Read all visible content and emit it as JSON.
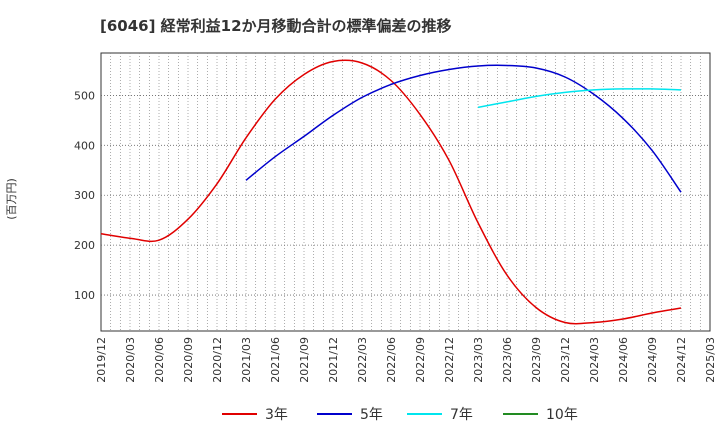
{
  "chart_data": {
    "type": "line",
    "title": "[6046]  経常利益12か月移動合計の標準偏差の推移",
    "ylabel": "(百万円)",
    "xlabel": "",
    "ylim": [
      28,
      585
    ],
    "yticks": [
      100,
      200,
      300,
      400,
      500
    ],
    "xlim": [
      "2019-12",
      "2025-03"
    ],
    "xticks": [
      "2019/12",
      "2020/03",
      "2020/06",
      "2020/09",
      "2020/12",
      "2021/03",
      "2021/06",
      "2021/09",
      "2021/12",
      "2022/03",
      "2022/06",
      "2022/09",
      "2022/12",
      "2023/03",
      "2023/06",
      "2023/09",
      "2023/12",
      "2024/03",
      "2024/06",
      "2024/09",
      "2024/12",
      "2025/03"
    ],
    "grid": true,
    "legend_position": "bottom",
    "series": [
      {
        "name": "3年",
        "color": "#e00000",
        "points": [
          [
            "2019-12",
            223
          ],
          [
            "2020-03",
            214
          ],
          [
            "2020-06",
            210
          ],
          [
            "2020-09",
            252
          ],
          [
            "2020-12",
            323
          ],
          [
            "2021-03",
            415
          ],
          [
            "2021-06",
            492
          ],
          [
            "2021-09",
            542
          ],
          [
            "2021-12",
            568
          ],
          [
            "2022-03",
            565
          ],
          [
            "2022-06",
            530
          ],
          [
            "2022-09",
            462
          ],
          [
            "2022-12",
            370
          ],
          [
            "2023-03",
            245
          ],
          [
            "2023-06",
            140
          ],
          [
            "2023-09",
            75
          ],
          [
            "2023-12",
            45
          ],
          [
            "2024-03",
            45
          ],
          [
            "2024-06",
            52
          ],
          [
            "2024-09",
            64
          ],
          [
            "2024-12",
            74
          ]
        ]
      },
      {
        "name": "5年",
        "color": "#0000cc",
        "points": [
          [
            "2021-03",
            330
          ],
          [
            "2021-06",
            377
          ],
          [
            "2021-09",
            418
          ],
          [
            "2021-12",
            460
          ],
          [
            "2022-03",
            496
          ],
          [
            "2022-06",
            522
          ],
          [
            "2022-09",
            540
          ],
          [
            "2022-12",
            552
          ],
          [
            "2023-03",
            559
          ],
          [
            "2023-06",
            560
          ],
          [
            "2023-09",
            555
          ],
          [
            "2023-12",
            537
          ],
          [
            "2024-03",
            502
          ],
          [
            "2024-06",
            454
          ],
          [
            "2024-09",
            390
          ],
          [
            "2024-12",
            306
          ]
        ]
      },
      {
        "name": "7年",
        "color": "#00e5ee",
        "points": [
          [
            "2023-03",
            476
          ],
          [
            "2023-06",
            487
          ],
          [
            "2023-09",
            498
          ],
          [
            "2023-12",
            506
          ],
          [
            "2024-03",
            511
          ],
          [
            "2024-06",
            513
          ],
          [
            "2024-09",
            513
          ],
          [
            "2024-12",
            511
          ]
        ]
      },
      {
        "name": "10年",
        "color": "#228b22",
        "points": []
      }
    ]
  }
}
